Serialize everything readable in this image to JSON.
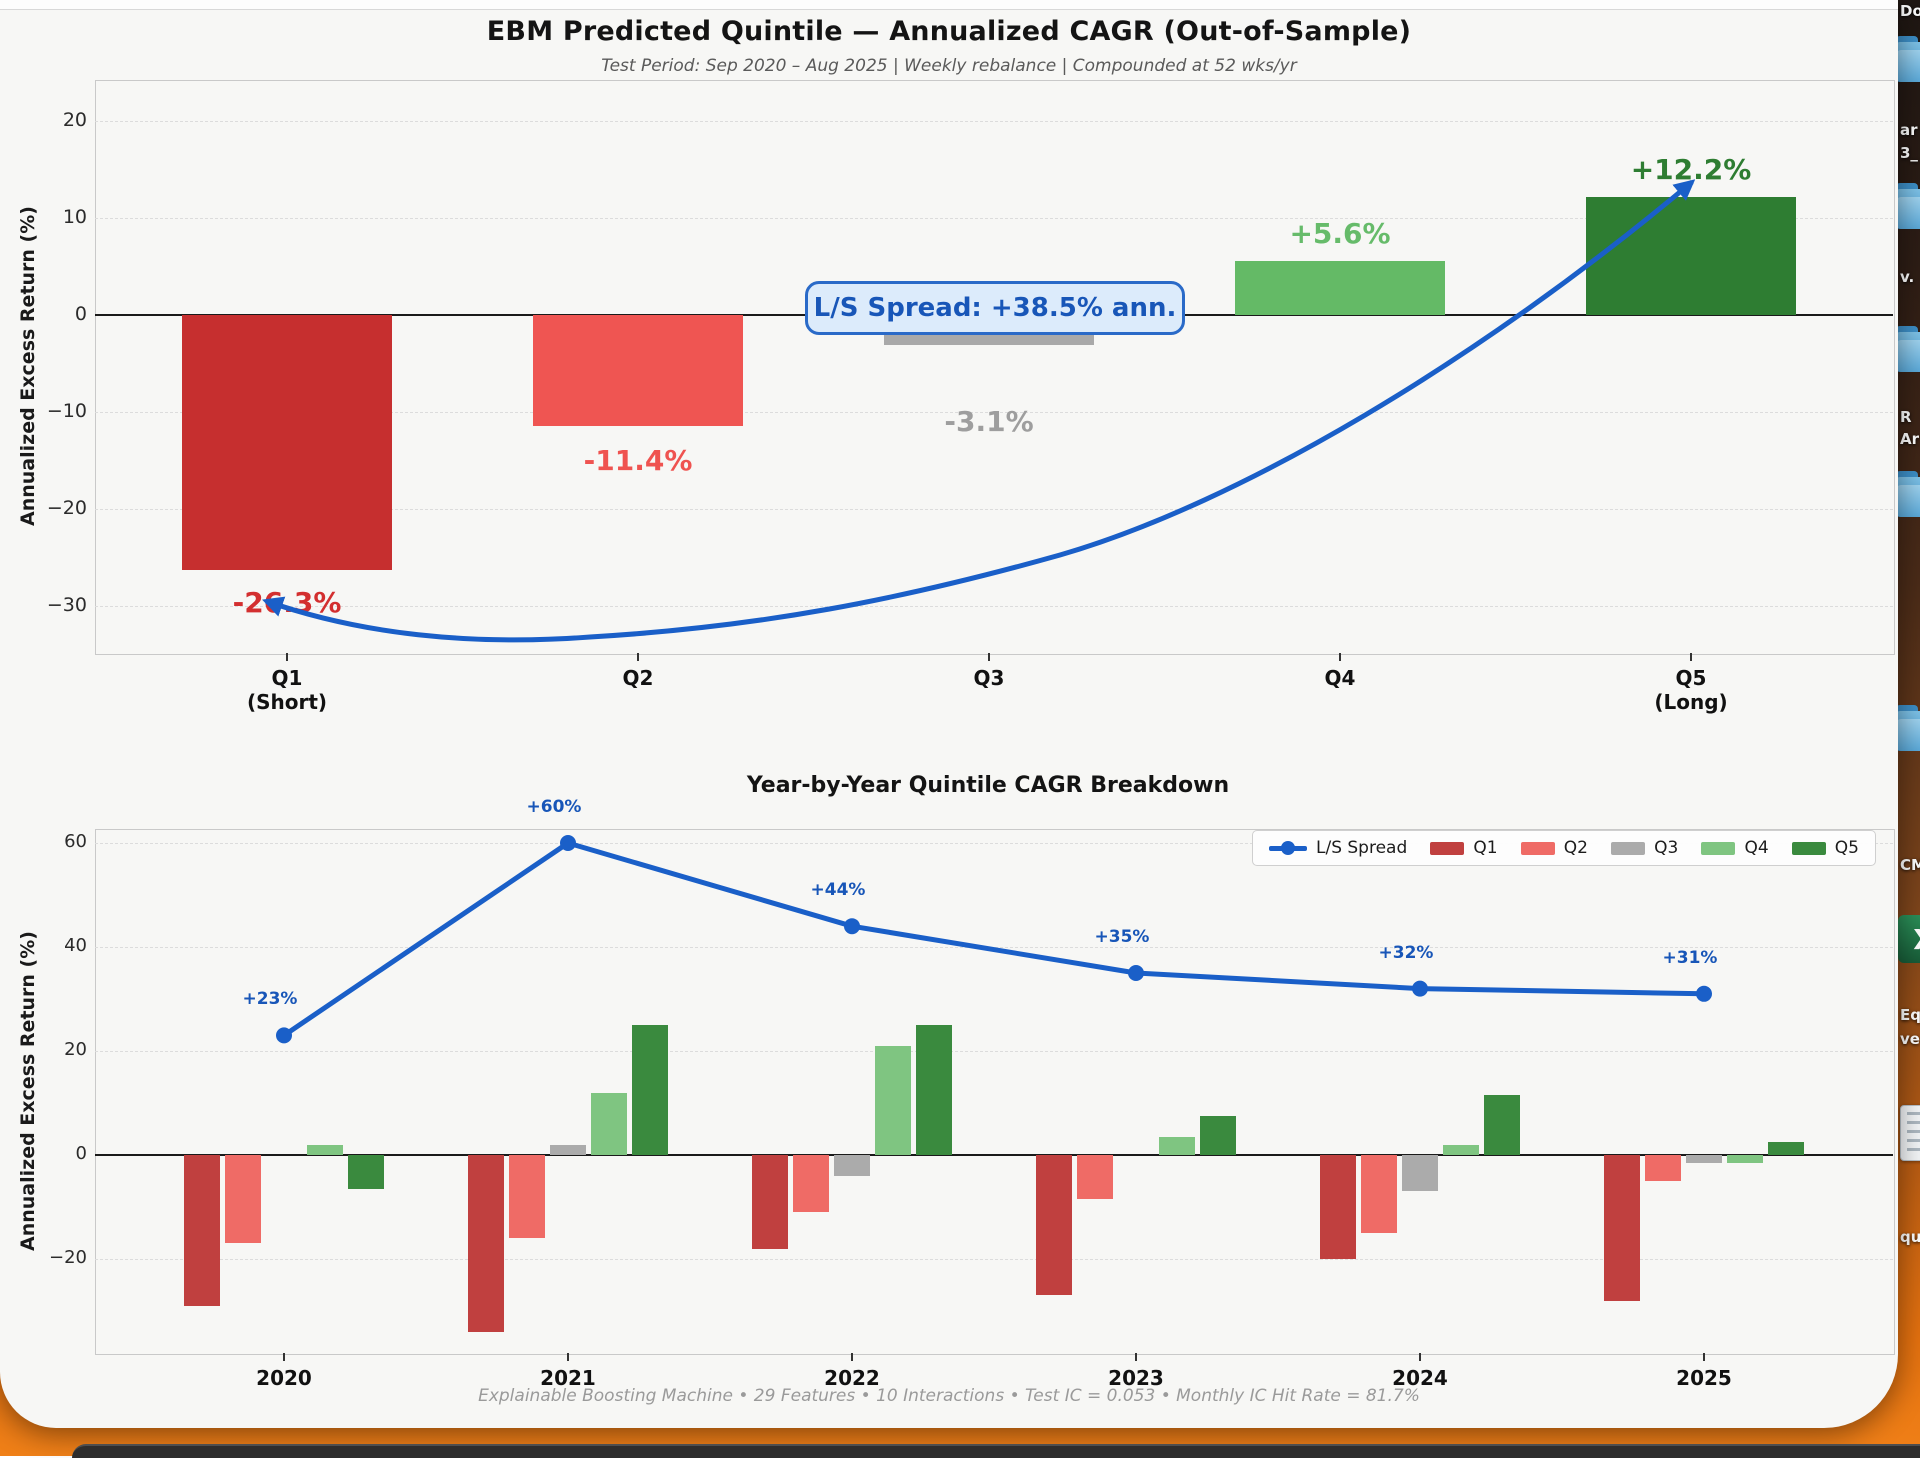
{
  "chart_data": [
    {
      "type": "bar",
      "title": "EBM Predicted Quintile — Annualized CAGR (Out-of-Sample)",
      "subtitle": "Test Period: Sep 2020 – Aug 2025  |  Weekly rebalance  |  Compounded at 52 wks/yr",
      "ylabel": "Annualized Excess Return (%)",
      "categories": [
        [
          "Q1",
          "(Short)"
        ],
        [
          "Q2"
        ],
        [
          "Q3"
        ],
        [
          "Q4"
        ],
        [
          "Q5",
          "(Long)"
        ]
      ],
      "values": [
        -26.3,
        -11.4,
        -3.1,
        5.6,
        12.2
      ],
      "bar_labels": [
        "-26.3%",
        "-11.4%",
        "-3.1%",
        "+5.6%",
        "+12.2%"
      ],
      "bar_colors": [
        "#c62f2f",
        "#ef5552",
        "#a9a9a9",
        "#64ba66",
        "#2e7d32"
      ],
      "label_colors": [
        "#d32f2f",
        "#ef5350",
        "#9e9e9e",
        "#66bb6a",
        "#2e7d32"
      ],
      "yticks": [
        20,
        10,
        0,
        -10,
        -20,
        -30
      ],
      "ytick_labels": [
        "20",
        "10",
        "0",
        "−10",
        "−20",
        "−30"
      ],
      "ylim": [
        -35.5,
        24.2
      ],
      "grid": true,
      "annotation": {
        "text": "L/S Spread: +38.5% ann."
      }
    },
    {
      "type": "bar+line",
      "title": "Year-by-Year Quintile CAGR Breakdown",
      "ylabel": "Annualized Excess Return (%)",
      "categories": [
        "2020",
        "2021",
        "2022",
        "2023",
        "2024",
        "2025"
      ],
      "series": [
        {
          "name": "Q1",
          "color": "#c0403f",
          "values": [
            -29,
            -34,
            -18,
            -27,
            -20,
            -28
          ]
        },
        {
          "name": "Q2",
          "color": "#ef6b66",
          "values": [
            -17,
            -16,
            -11,
            -8.5,
            -15,
            -5
          ]
        },
        {
          "name": "Q3",
          "color": "#ababab",
          "values": [
            0,
            2,
            -4,
            0,
            -7,
            -1.5
          ]
        },
        {
          "name": "Q4",
          "color": "#7fc581",
          "values": [
            2,
            12,
            21,
            3.5,
            2,
            -1.5
          ]
        },
        {
          "name": "Q5",
          "color": "#3a8a3e",
          "values": [
            -6.5,
            25,
            25,
            7.5,
            11.5,
            2.5
          ]
        }
      ],
      "line": {
        "name": "L/S Spread",
        "color": "#1a5fc8",
        "values": [
          23,
          60,
          44,
          35,
          32,
          31
        ],
        "labels": [
          "+23%",
          "+60%",
          "+44%",
          "+35%",
          "+32%",
          "+31%"
        ]
      },
      "yticks": [
        60,
        40,
        20,
        0,
        -20
      ],
      "ytick_labels": [
        "60",
        "40",
        "20",
        "0",
        "−20"
      ],
      "ylim": [
        -38,
        63
      ],
      "grid": true,
      "legend": [
        "L/S Spread",
        "Q1",
        "Q2",
        "Q3",
        "Q4",
        "Q5"
      ],
      "legend_position": "upper right"
    }
  ],
  "footer": {
    "text": "Explainable Boosting Machine  •  29 Features  •  10 Interactions  •  Test IC = 0.053  •  Monthly IC Hit Rate = 81.7%"
  },
  "desktop": {
    "label_fragments": [
      "Do",
      "ar",
      "3_",
      "v.",
      "R",
      "Ar",
      "CM",
      "Eq",
      "ve",
      "qu"
    ],
    "icons": [
      "folder-icon",
      "folder-icon",
      "folder-icon",
      "folder-icon",
      "folder-icon",
      "excel-icon",
      "document-icon"
    ]
  },
  "colors": {
    "accent_blue": "#1a5fc8",
    "annotation_bg": "#dcebfb",
    "annotation_border": "#2a6ac8",
    "wallpaper_top": "#1f1713",
    "wallpaper_bottom": "#f08018",
    "taskbar": "#2d2d2d"
  }
}
